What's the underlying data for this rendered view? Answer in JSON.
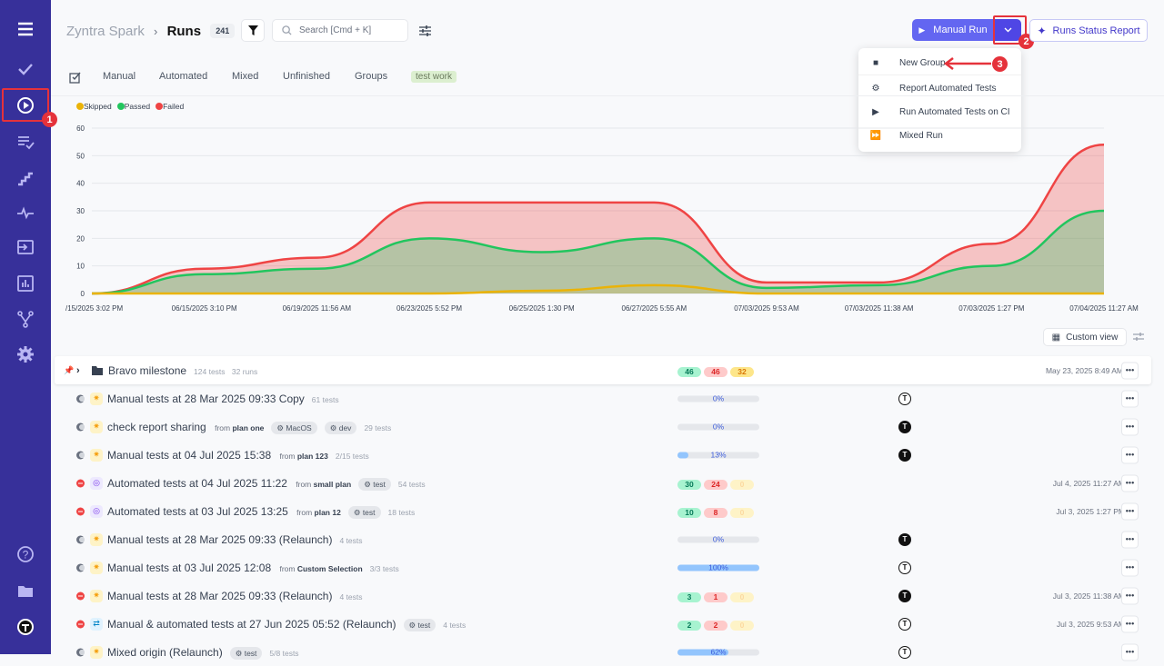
{
  "sidebar": {
    "items": [
      "menu",
      "tests",
      "runs",
      "plans",
      "steps",
      "pulse",
      "import",
      "analytics",
      "branches",
      "settings",
      "help",
      "projects",
      "account"
    ],
    "active": "runs",
    "annotation": "1"
  },
  "header": {
    "project": "Zyntra Spark",
    "separator": "›",
    "title": "Runs",
    "count": "241",
    "search_placeholder": "Search [Cmd + K]"
  },
  "actions": {
    "manual_run": "Manual Run",
    "status_report": "Runs Status Report",
    "dropdown_annotation": "2",
    "menu_annotation": "3"
  },
  "dropdown": {
    "items": [
      "New Group",
      "Report Automated Tests",
      "Run Automated Tests on CI",
      "Mixed Run"
    ]
  },
  "tabs": [
    "Manual",
    "Automated",
    "Mixed",
    "Unfinished",
    "Groups",
    "test work"
  ],
  "chart_data": {
    "type": "area",
    "legend": [
      "Skipped",
      "Passed",
      "Failed"
    ],
    "legend_position": "top-left",
    "colors": {
      "Skipped": "#eab308",
      "Passed": "#22c55e",
      "Failed": "#ef4444"
    },
    "categories": [
      "/15/2025 3:02 PM",
      "06/15/2025 3:10 PM",
      "06/19/2025 11:56 AM",
      "06/23/2025 5:52 PM",
      "06/25/2025 1:30 PM",
      "06/27/2025 5:55 AM",
      "07/03/2025 9:53 AM",
      "07/03/2025 11:38 AM",
      "07/03/2025 1:27 PM",
      "07/04/2025 11:27 AM"
    ],
    "yticks": [
      "0",
      "10",
      "20",
      "30",
      "40",
      "50",
      "60"
    ],
    "ylim": [
      0,
      60
    ],
    "grid": true,
    "series": [
      {
        "name": "Failed",
        "values": [
          0,
          9,
          13,
          33,
          33,
          33,
          4,
          4,
          18,
          54
        ]
      },
      {
        "name": "Passed",
        "values": [
          0,
          7,
          9,
          20,
          15,
          20,
          2,
          3,
          10,
          30
        ]
      },
      {
        "name": "Skipped",
        "values": [
          0,
          0,
          0,
          0,
          1,
          3,
          0,
          0,
          0,
          0
        ]
      }
    ]
  },
  "view": {
    "custom_view": "Custom view"
  },
  "group": {
    "name": "Bravo milestone",
    "tests": "124 tests",
    "runs": "32 runs",
    "passed": "46",
    "failed": "46",
    "skipped": "32",
    "date": "May 23, 2025 8:49 AM"
  },
  "rows": [
    {
      "status": "gray",
      "type": "manual",
      "title": "Manual tests at 28 Mar 2025 09:33 Copy",
      "from": "",
      "plan": "",
      "tags": [],
      "count": "61 tests",
      "progress": 0,
      "progress_label": "0%",
      "avatar": "outline",
      "date": ""
    },
    {
      "status": "gray",
      "type": "manual",
      "title": "check report sharing",
      "from": "from",
      "plan": "plan one",
      "tags": [
        "MacOS",
        "dev"
      ],
      "count": "29 tests",
      "progress": 0,
      "progress_label": "0%",
      "avatar": "filled",
      "date": ""
    },
    {
      "status": "gray",
      "type": "manual",
      "title": "Manual tests at 04 Jul 2025 15:38",
      "from": "from",
      "plan": "plan 123",
      "tags": [],
      "count": "2/15 tests",
      "progress": 13,
      "progress_label": "13%",
      "avatar": "filled",
      "date": ""
    },
    {
      "status": "red",
      "type": "auto",
      "title": "Automated tests at 04 Jul 2025 11:22",
      "from": "from",
      "plan": "small plan",
      "tags": [
        "test"
      ],
      "count": "54 tests",
      "passed": "30",
      "failed": "24",
      "skipped": "0",
      "avatar": "",
      "date": "Jul 4, 2025 11:27 AM"
    },
    {
      "status": "red",
      "type": "auto",
      "title": "Automated tests at 03 Jul 2025 13:25",
      "from": "from",
      "plan": "plan 12",
      "tags": [
        "test"
      ],
      "count": "18 tests",
      "passed": "10",
      "failed": "8",
      "skipped": "0",
      "avatar": "",
      "date": "Jul 3, 2025 1:27 PM"
    },
    {
      "status": "gray",
      "type": "manual",
      "title": "Manual tests at 28 Mar 2025 09:33 (Relaunch)",
      "from": "",
      "plan": "",
      "tags": [],
      "count": "4 tests",
      "progress": 0,
      "progress_label": "0%",
      "avatar": "filled",
      "date": ""
    },
    {
      "status": "gray",
      "type": "manual",
      "title": "Manual tests at 03 Jul 2025 12:08",
      "from": "from",
      "plan": "Custom Selection",
      "tags": [],
      "count": "3/3 tests",
      "progress": 100,
      "progress_label": "100%",
      "avatar": "outline",
      "date": ""
    },
    {
      "status": "red",
      "type": "manual",
      "title": "Manual tests at 28 Mar 2025 09:33 (Relaunch)",
      "from": "",
      "plan": "",
      "tags": [],
      "count": "4 tests",
      "passed": "3",
      "failed": "1",
      "skipped": "0",
      "avatar": "filled",
      "date": "Jul 3, 2025 11:38 AM"
    },
    {
      "status": "red",
      "type": "mixed",
      "title": "Manual & automated tests at 27 Jun 2025 05:52 (Relaunch)",
      "from": "",
      "plan": "",
      "tags": [
        "test"
      ],
      "count": "4 tests",
      "passed": "2",
      "failed": "2",
      "skipped": "0",
      "avatar": "outline",
      "date": "Jul 3, 2025 9:53 AM"
    },
    {
      "status": "gray",
      "type": "manual",
      "title": "Mixed origin (Relaunch)",
      "from": "",
      "plan": "",
      "tags": [
        "test"
      ],
      "count": "5/8 tests",
      "progress": 62,
      "progress_label": "62%",
      "avatar": "outline",
      "date": ""
    }
  ]
}
